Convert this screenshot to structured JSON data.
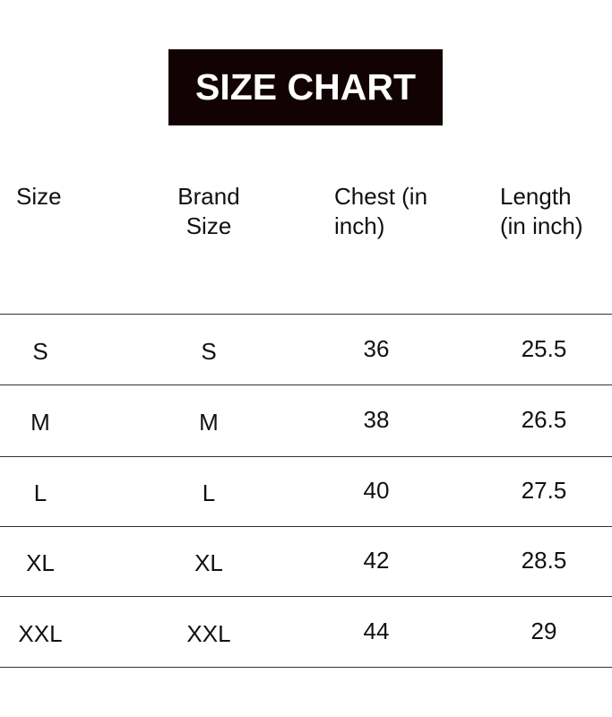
{
  "title": "SIZE CHART",
  "headers": [
    "Size",
    "Brand Size",
    "Chest (in inch)",
    "Length (in inch)"
  ],
  "rows": [
    [
      "S",
      "S",
      "36",
      "25.5"
    ],
    [
      "M",
      "M",
      "38",
      "26.5"
    ],
    [
      "L",
      "L",
      "40",
      "27.5"
    ],
    [
      "XL",
      "XL",
      "42",
      "28.5"
    ],
    [
      "XXL",
      "XXL",
      "44",
      "29"
    ]
  ],
  "colors": {
    "title_bg": "#120203",
    "title_text": "#ffffff"
  }
}
